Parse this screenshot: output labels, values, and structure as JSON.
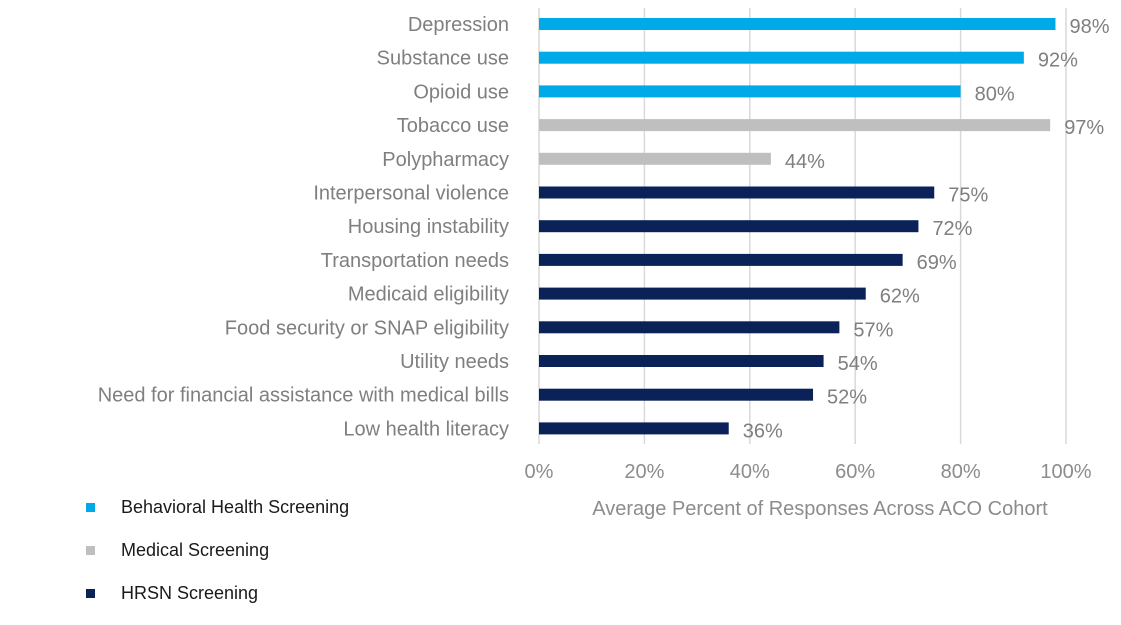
{
  "chart_data": {
    "type": "bar",
    "orientation": "horizontal",
    "categories": [
      "Depression",
      "Substance use",
      "Opioid use",
      "Tobacco use",
      "Polypharmacy",
      "Interpersonal violence",
      "Housing instability",
      "Transportation needs",
      "Medicaid eligibility",
      "Food security or SNAP eligibility",
      "Utility needs",
      "Need for financial assistance with medical bills",
      "Low health literacy"
    ],
    "values": [
      98,
      92,
      80,
      97,
      44,
      75,
      72,
      69,
      62,
      57,
      54,
      52,
      36
    ],
    "value_labels": [
      "98%",
      "92%",
      "80%",
      "97%",
      "44%",
      "75%",
      "72%",
      "69%",
      "62%",
      "57%",
      "54%",
      "52%",
      "36%"
    ],
    "groups": [
      "Behavioral Health Screening",
      "Behavioral Health Screening",
      "Behavioral Health Screening",
      "Medical Screening",
      "Medical Screening",
      "HRSN Screening",
      "HRSN Screening",
      "HRSN Screening",
      "HRSN Screening",
      "HRSN Screening",
      "HRSN Screening",
      "HRSN Screening",
      "HRSN Screening"
    ],
    "legend": [
      {
        "name": "Behavioral Health Screening",
        "color": "#00a9e8"
      },
      {
        "name": "Medical Screening",
        "color": "#bfbfbf"
      },
      {
        "name": "HRSN Screening",
        "color": "#0b2259"
      }
    ],
    "xlim": [
      0,
      100
    ],
    "xticks": [
      "0%",
      "20%",
      "40%",
      "60%",
      "80%",
      "100%"
    ],
    "xlabel": "Average Percent of Responses Across ACO Cohort",
    "ylabel": "",
    "title": "",
    "grid": true,
    "legend_placement": "bottom-left"
  }
}
